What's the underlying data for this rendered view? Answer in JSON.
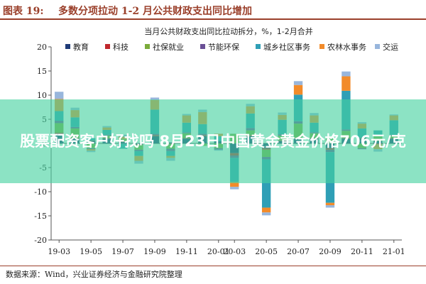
{
  "header": {
    "fig_label": "图表 19:",
    "title": "多数分项拉动 1-2 月公共财政支出同比增加"
  },
  "source": "数据来源：Wind，兴业证券经济与金融研究院整理",
  "banner": {
    "text": "股票配资客户好找吗 8月23日中国黄金黄金价格706元/克"
  },
  "colors": {
    "教育": "#1f3b78",
    "科技": "#c0282d",
    "社保就业": "#7bab3b",
    "节能环保": "#6a4f96",
    "城乡社区事务": "#2f9fb6",
    "农林水事务": "#f28b2a",
    "交运": "#98b6dc"
  },
  "chart_data": {
    "type": "bar",
    "stacked": true,
    "title": "当月公共财政支出同比拉动拆分，%，1-2月合并",
    "xlabel": "",
    "ylabel": "",
    "ylim": [
      -20,
      20
    ],
    "yticks": [
      -20,
      -15,
      -10,
      -5,
      0,
      5,
      10,
      15,
      20
    ],
    "grid": false,
    "legend_position": "top",
    "categories": [
      "19-03",
      "19-04",
      "19-05",
      "19-06",
      "19-07",
      "19-08",
      "19-09",
      "19-10",
      "19-11",
      "19-12",
      "20-01",
      "20-03",
      "20-04",
      "20-05",
      "20-06",
      "20-07",
      "20-08",
      "20-09",
      "20-10",
      "20-11",
      "20-12",
      "21-01"
    ],
    "tick_labels": [
      "19-03",
      "19-05",
      "19-07",
      "19-09",
      "19-11",
      "20-01",
      "20-03",
      "20-05",
      "20-07",
      "20-09",
      "20-11",
      "21-01"
    ],
    "series": [
      {
        "name": "教育",
        "values": [
          2.0,
          1.0,
          0.5,
          1.0,
          0.3,
          -0.2,
          1.5,
          0.2,
          1.0,
          1.5,
          0.5,
          -2.0,
          1.5,
          -1.0,
          0.5,
          1.0,
          1.0,
          -1.0,
          1.0,
          1.0,
          0.5,
          1.0
        ]
      },
      {
        "name": "科技",
        "values": [
          0.2,
          0.1,
          0.1,
          0.1,
          0.1,
          -0.1,
          0.2,
          -0.1,
          0.1,
          0.2,
          0.0,
          -0.5,
          0.2,
          -0.3,
          0.1,
          0.1,
          0.1,
          -0.3,
          0.1,
          0.1,
          -0.2,
          0.1
        ]
      },
      {
        "name": "社保就业",
        "values": [
          2.0,
          2.0,
          -1.0,
          0.5,
          0.5,
          -1.0,
          0.0,
          -1.0,
          1.0,
          -0.5,
          -1.0,
          2.0,
          1.0,
          -1.5,
          1.0,
          3.0,
          1.0,
          1.0,
          1.5,
          -1.0,
          1.0,
          0.5
        ]
      },
      {
        "name": "节能环保",
        "values": [
          0.5,
          0.3,
          -0.2,
          0.2,
          -0.1,
          -0.3,
          0.3,
          -0.5,
          0.2,
          0.3,
          -0.3,
          -0.5,
          0.5,
          -0.5,
          0.3,
          0.5,
          0.2,
          -0.5,
          0.3,
          -0.2,
          0.2,
          0.2
        ]
      },
      {
        "name": "城乡社区事务",
        "values": [
          2.0,
          2.0,
          0.5,
          1.0,
          -1.0,
          -1.0,
          5.0,
          -1.0,
          2.0,
          2.0,
          1.0,
          -5.0,
          3.0,
          -10.0,
          3.0,
          5.5,
          2.0,
          -10.5,
          8.0,
          2.0,
          1.0,
          3.0
        ]
      },
      {
        "name": "农林水事务",
        "values": [
          2.5,
          1.5,
          -0.3,
          0.5,
          0.5,
          -1.0,
          2.0,
          -0.4,
          1.5,
          2.5,
          0.5,
          -1.0,
          1.5,
          -1.0,
          1.0,
          2.0,
          1.5,
          -0.5,
          3.0,
          1.0,
          -1.0,
          1.0
        ]
      },
      {
        "name": "交运",
        "values": [
          1.5,
          0.5,
          -0.3,
          0.3,
          0.4,
          -0.6,
          0.5,
          -0.6,
          0.3,
          0.5,
          -0.2,
          -0.5,
          0.5,
          -0.6,
          0.5,
          0.8,
          0.5,
          -0.5,
          1.0,
          0.3,
          -0.5,
          0.2
        ]
      }
    ]
  }
}
